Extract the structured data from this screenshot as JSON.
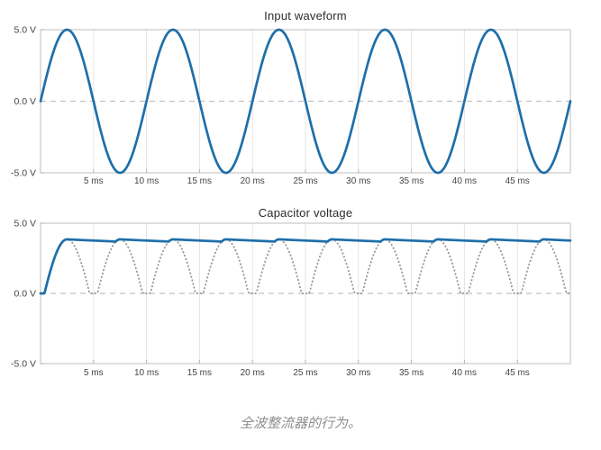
{
  "caption": "全波整流器的行为。",
  "colors": {
    "waveform_blue": "#1e6fa9",
    "rectified_gray": "#9c9c9c",
    "grid": "#e4e4e4",
    "frame": "#c9c9c9",
    "zero_line": "#c2c2c2",
    "tick": "#b5b5b5",
    "label": "#444444",
    "title": "#2b2b2b",
    "caption": "#8c8c8c",
    "background": "#ffffff"
  },
  "chart_data": [
    {
      "type": "line",
      "title": "Input waveform",
      "x_axis": {
        "unit": "ms",
        "min": 0,
        "max": 50,
        "tick_values": [
          5,
          10,
          15,
          20,
          25,
          30,
          35,
          40,
          45
        ],
        "tick_labels": [
          "5 ms",
          "10 ms",
          "15 ms",
          "20 ms",
          "25 ms",
          "30 ms",
          "35 ms",
          "40 ms",
          "45 ms"
        ]
      },
      "y_axis": {
        "unit": "V",
        "min": -5,
        "max": 5,
        "tick_values": [
          5,
          0,
          -5
        ],
        "tick_labels": [
          "5.0 V",
          "0.0 V",
          "-5.0 V"
        ],
        "zero_line_dashed": true
      },
      "grid": "vertical-only",
      "legend": "none",
      "series": [
        {
          "name": "input-sine",
          "model": "sine",
          "amplitude_V": 5,
          "period_ms": 10,
          "phase_deg": 0,
          "line_style": "solid",
          "color_key": "waveform_blue",
          "description": "5 V amplitude, 10 ms period (100 Hz) sine wave starting at 0 V, peaks +5 V at 2.5 ms, troughs -5 V at 7.5 ms, five full cycles over 0-50 ms"
        }
      ]
    },
    {
      "type": "line",
      "title": "Capacitor voltage",
      "x_axis": {
        "unit": "ms",
        "min": 0,
        "max": 50,
        "tick_values": [
          5,
          10,
          15,
          20,
          25,
          30,
          35,
          40,
          45
        ],
        "tick_labels": [
          "5 ms",
          "10 ms",
          "15 ms",
          "20 ms",
          "25 ms",
          "30 ms",
          "35 ms",
          "40 ms",
          "45 ms"
        ]
      },
      "y_axis": {
        "unit": "V",
        "min": -5,
        "max": 5,
        "tick_values": [
          5,
          0,
          -5
        ],
        "tick_labels": [
          "5.0 V",
          "0.0 V",
          "-5.0 V"
        ],
        "zero_line_dashed": true
      },
      "grid": "vertical-only",
      "legend": "none",
      "series": [
        {
          "name": "rectified-input",
          "model": "full_wave_rectified_sine",
          "amplitude_V": 5,
          "period_ms": 10,
          "diode_drop_V": 1.15,
          "peak_V": 3.85,
          "peak_times_ms": [
            2.5,
            7.5,
            12.5,
            17.5,
            22.5,
            27.5,
            32.5,
            37.5,
            42.5,
            47.5
          ],
          "line_style": "dotted",
          "color_key": "rectified_gray",
          "description": "full-wave rectified sine after diode drops; humps every 5 ms peaking ~3.85 V, clipped to 0 V near zero crossings"
        },
        {
          "name": "capacitor-voltage",
          "model": "peak_detector",
          "source": "rectified-input",
          "decay_tau_ms": 110,
          "peak_V": 3.85,
          "ripple_min_V": 3.69,
          "line_style": "solid",
          "color_key": "waveform_blue",
          "description": "capacitor charges from 0 V to ~3.85 V in first 2.5 ms, then holds with small ripple, recharging at every rectified peak"
        }
      ]
    }
  ]
}
